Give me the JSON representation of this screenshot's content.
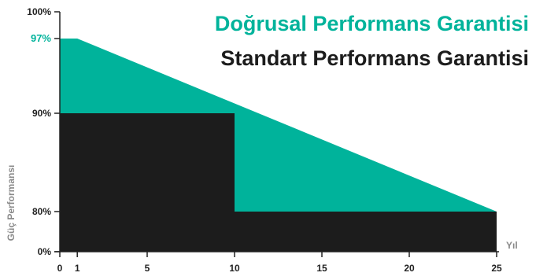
{
  "chart_data": {
    "type": "area",
    "title": "",
    "xlabel": "Yıl",
    "ylabel": "Güç Performansı",
    "xlim": [
      0,
      25
    ],
    "x_ticks": [
      0,
      1,
      5,
      10,
      15,
      20,
      25
    ],
    "y_ticks": [
      {
        "value": 0,
        "label": "0%"
      },
      {
        "value": 80,
        "label": "80%"
      },
      {
        "value": 90,
        "label": "90%"
      },
      {
        "value": 97,
        "label": "97%",
        "highlight": true
      },
      {
        "value": 100,
        "label": "100%"
      }
    ],
    "legend_position": "top-right",
    "series": [
      {
        "name": "Doğrusal Performans Garantisi",
        "color": "#00b39b",
        "points": [
          [
            0,
            97
          ],
          [
            1,
            97
          ],
          [
            25,
            80
          ]
        ]
      },
      {
        "name": "Standart Performans Garantisi",
        "color": "#1c1c1c",
        "points": [
          [
            0,
            90
          ],
          [
            10,
            90
          ],
          [
            10,
            80
          ],
          [
            25,
            80
          ]
        ]
      }
    ],
    "highlight_color": "#00b39b",
    "axis_color": "#222222",
    "axis_title_color": "#8a8a8a"
  }
}
